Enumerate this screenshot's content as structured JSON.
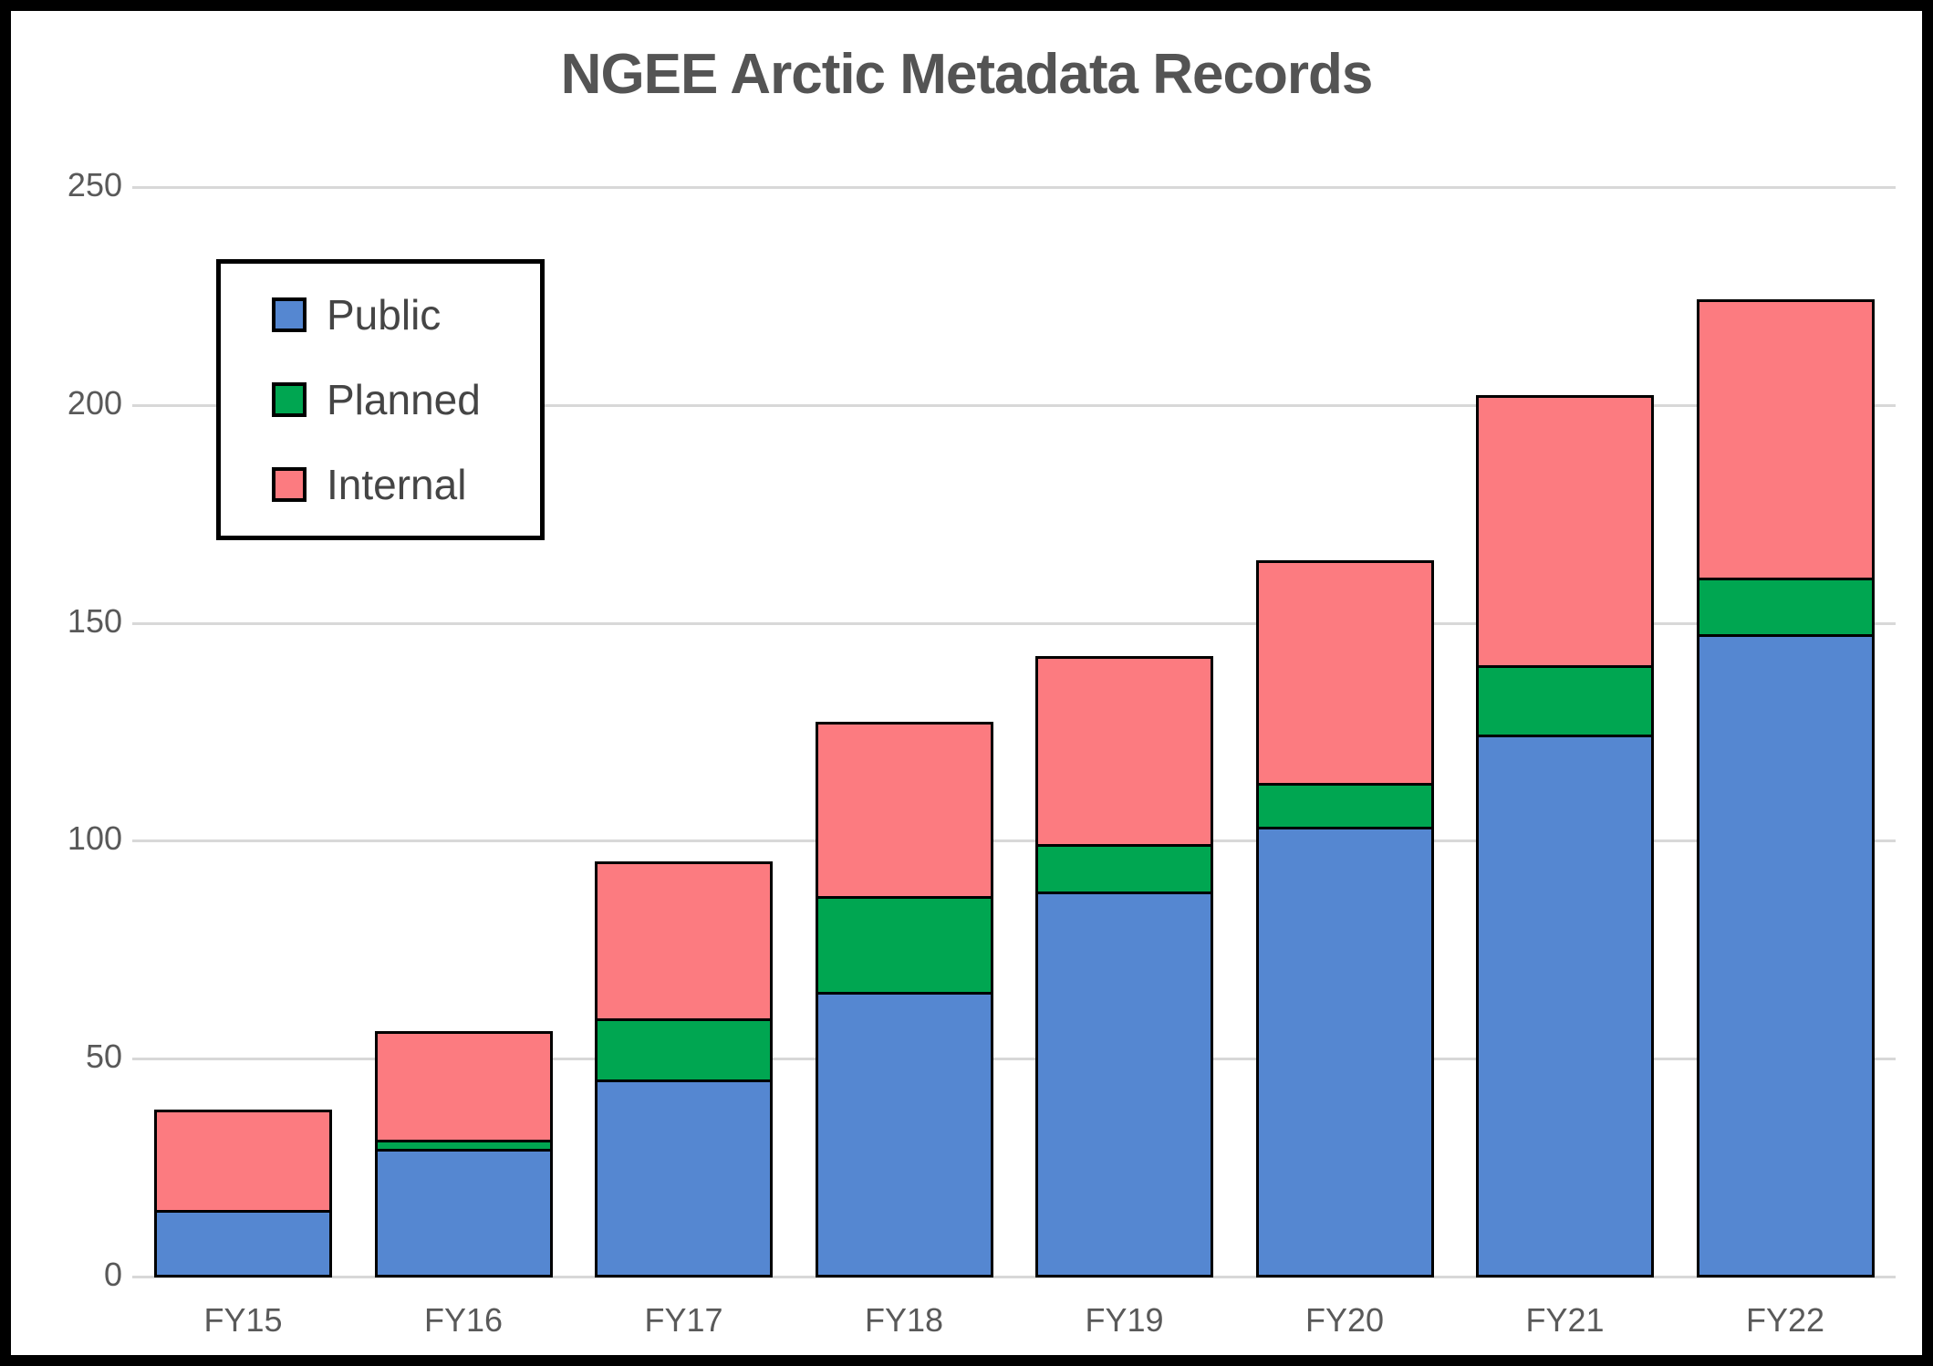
{
  "title": "NGEE Arctic Metadata Records",
  "colors": {
    "public": "#5587D1",
    "planned": "#00A651",
    "internal": "#FC7B80",
    "gridline": "#D8D8D8",
    "axis_text": "#595959",
    "title_text": "#545454",
    "bar_border": "#000000"
  },
  "legend": {
    "items": [
      "Public",
      "Planned",
      "Internal"
    ]
  },
  "chart_data": {
    "type": "bar",
    "stacked": true,
    "title": "NGEE Arctic Metadata Records",
    "categories": [
      "FY15",
      "FY16",
      "FY17",
      "FY18",
      "FY19",
      "FY20",
      "FY21",
      "FY22"
    ],
    "series": [
      {
        "name": "Public",
        "color": "#5587D1",
        "values": [
          15,
          29,
          45,
          65,
          88,
          103,
          124,
          147
        ]
      },
      {
        "name": "Planned",
        "color": "#00A651",
        "values": [
          0,
          2,
          14,
          22,
          11,
          10,
          16,
          13
        ]
      },
      {
        "name": "Internal",
        "color": "#FC7B80",
        "values": [
          23,
          25,
          36,
          40,
          43,
          51,
          62,
          64
        ]
      }
    ],
    "totals": [
      38,
      56,
      95,
      127,
      142,
      164,
      202,
      224
    ],
    "ylim": [
      0,
      250
    ],
    "ytick_step": 50,
    "yticks": [
      "0",
      "50",
      "100",
      "150",
      "200",
      "250"
    ],
    "grid": true,
    "legend_position": "upper-left-inside"
  }
}
